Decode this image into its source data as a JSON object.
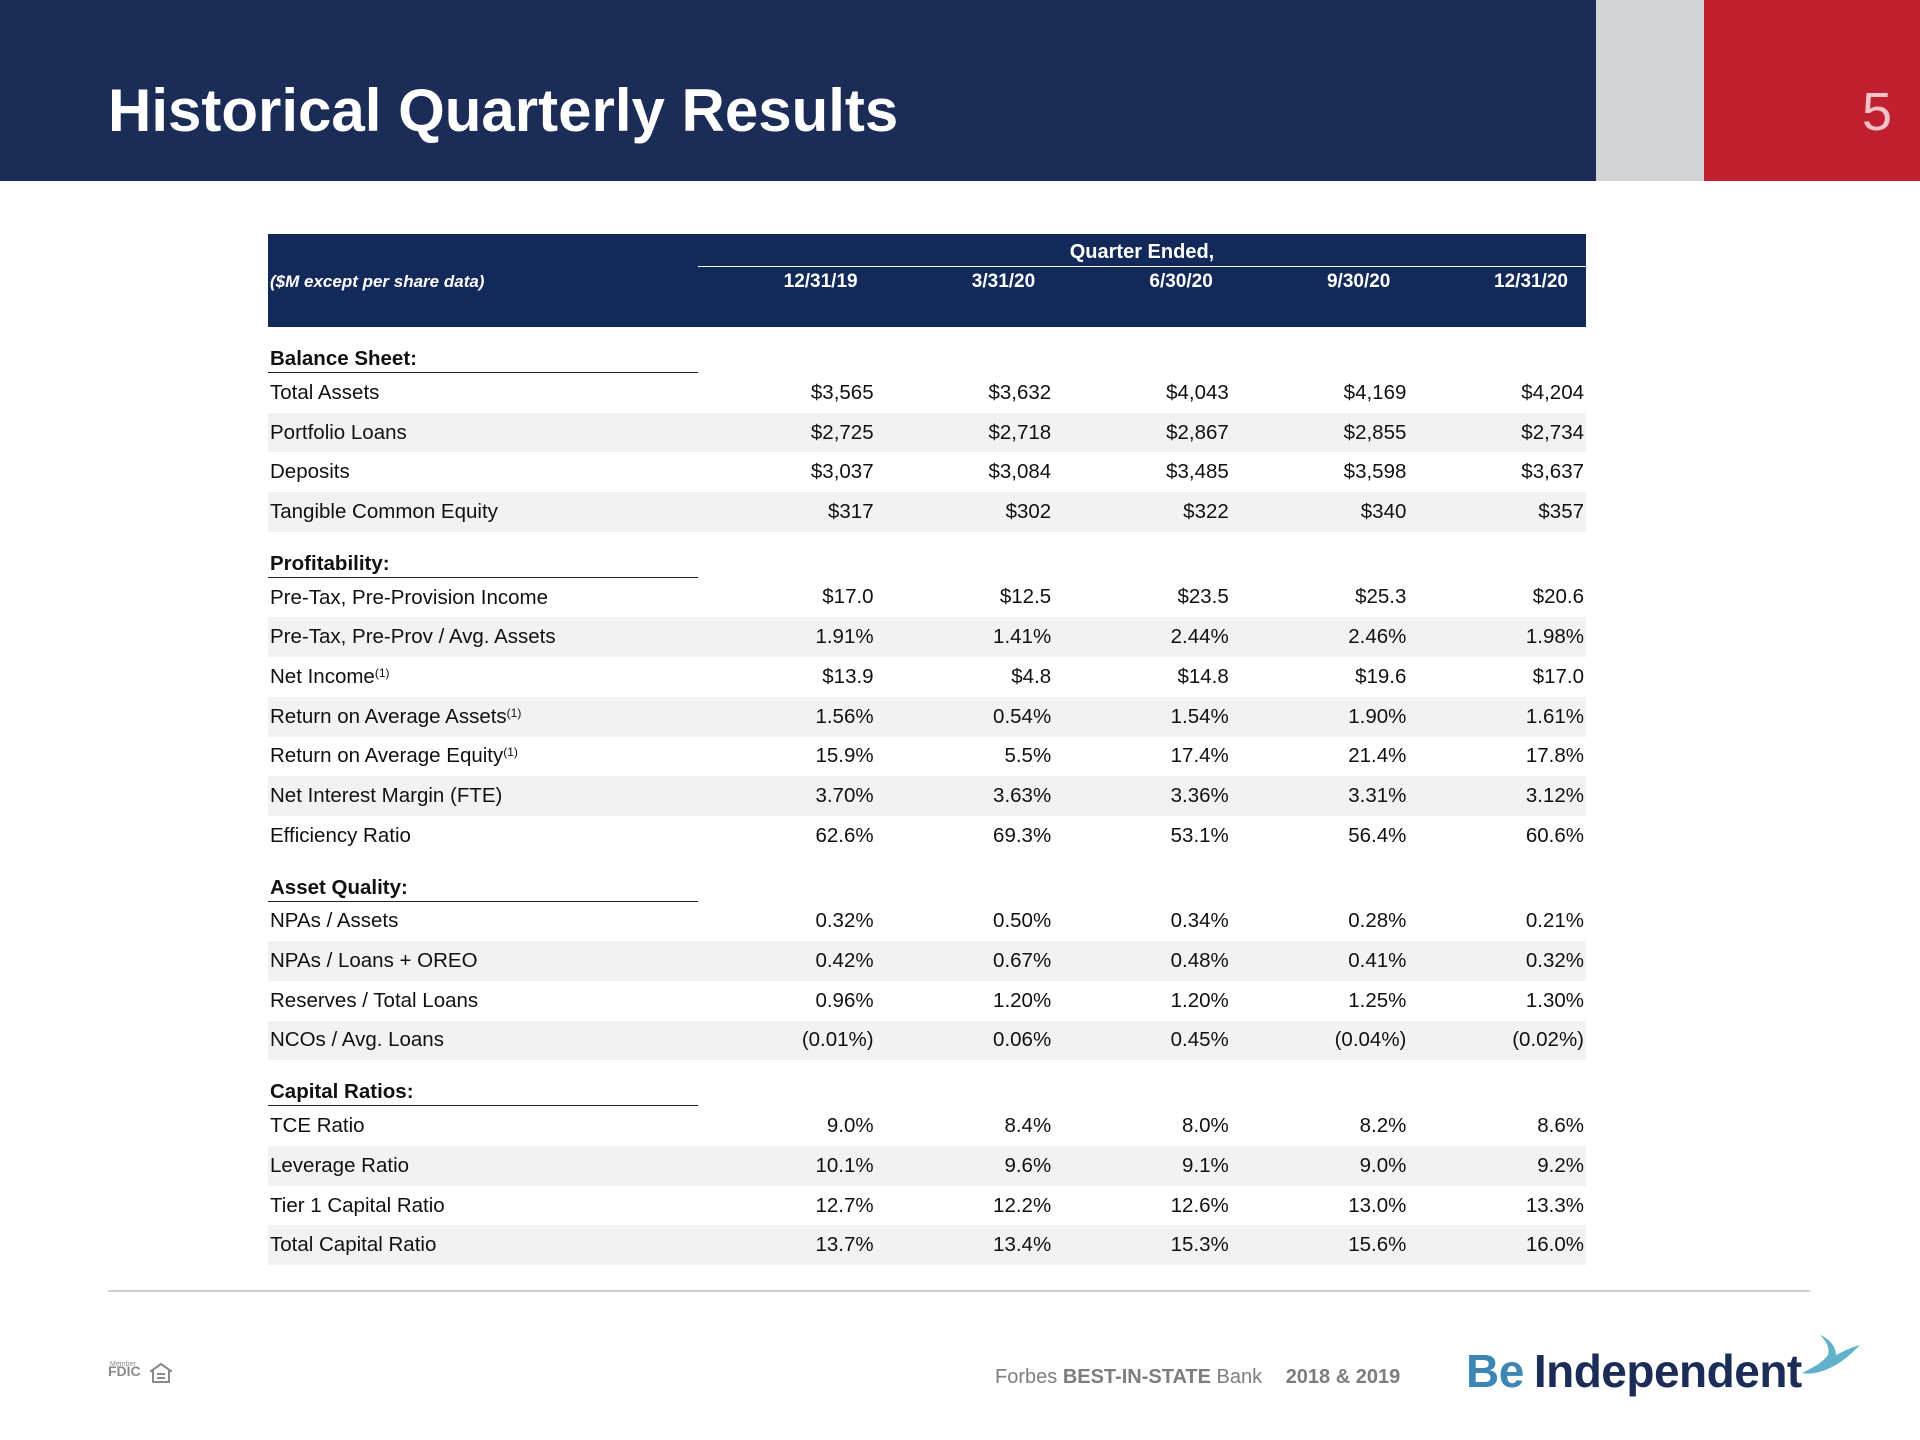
{
  "header": {
    "title": "Historical Quarterly Results",
    "page_number": "5",
    "colors": {
      "navy": "#1b2c57",
      "gray": "#d3d4d6",
      "red": "#c0202f"
    }
  },
  "table": {
    "group_header": "Quarter Ended,",
    "units_label": "($M except per share data)",
    "columns": [
      "12/31/19",
      "3/31/20",
      "6/30/20",
      "9/30/20",
      "12/31/20"
    ],
    "sections": [
      {
        "title": "Balance Sheet:",
        "rows": [
          {
            "label": "Total Assets",
            "values": [
              "$3,565",
              "$3,632",
              "$4,043",
              "$4,169",
              "$4,204"
            ]
          },
          {
            "label": "Portfolio Loans",
            "values": [
              "$2,725",
              "$2,718",
              "$2,867",
              "$2,855",
              "$2,734"
            ]
          },
          {
            "label": "Deposits",
            "values": [
              "$3,037",
              "$3,084",
              "$3,485",
              "$3,598",
              "$3,637"
            ]
          },
          {
            "label": "Tangible Common Equity",
            "values": [
              "$317",
              "$302",
              "$322",
              "$340",
              "$357"
            ]
          }
        ]
      },
      {
        "title": "Profitability:",
        "rows": [
          {
            "label": "Pre-Tax, Pre-Provision Income",
            "values": [
              "$17.0",
              "$12.5",
              "$23.5",
              "$25.3",
              "$20.6"
            ]
          },
          {
            "label": "Pre-Tax, Pre-Prov / Avg. Assets",
            "values": [
              "1.91%",
              "1.41%",
              "2.44%",
              "2.46%",
              "1.98%"
            ]
          },
          {
            "label": "Net Income",
            "note": "(1)",
            "values": [
              "$13.9",
              "$4.8",
              "$14.8",
              "$19.6",
              "$17.0"
            ]
          },
          {
            "label": "Return on Average Assets",
            "note": "(1)",
            "values": [
              "1.56%",
              "0.54%",
              "1.54%",
              "1.90%",
              "1.61%"
            ]
          },
          {
            "label": "Return on Average Equity",
            "note": "(1)",
            "values": [
              "15.9%",
              "5.5%",
              "17.4%",
              "21.4%",
              "17.8%"
            ]
          },
          {
            "label": "Net Interest Margin (FTE)",
            "values": [
              "3.70%",
              "3.63%",
              "3.36%",
              "3.31%",
              "3.12%"
            ]
          },
          {
            "label": "Efficiency Ratio",
            "values": [
              "62.6%",
              "69.3%",
              "53.1%",
              "56.4%",
              "60.6%"
            ]
          }
        ]
      },
      {
        "title": "Asset Quality:",
        "rows": [
          {
            "label": "NPAs / Assets",
            "values": [
              "0.32%",
              "0.50%",
              "0.34%",
              "0.28%",
              "0.21%"
            ]
          },
          {
            "label": "NPAs / Loans + OREO",
            "values": [
              "0.42%",
              "0.67%",
              "0.48%",
              "0.41%",
              "0.32%"
            ]
          },
          {
            "label": "Reserves / Total Loans",
            "values": [
              "0.96%",
              "1.20%",
              "1.20%",
              "1.25%",
              "1.30%"
            ]
          },
          {
            "label": "NCOs / Avg. Loans",
            "values": [
              "(0.01%)",
              "0.06%",
              "0.45%",
              "(0.04%)",
              "(0.02%)"
            ]
          }
        ]
      },
      {
        "title": "Capital Ratios:",
        "rows": [
          {
            "label": "TCE Ratio",
            "values": [
              "9.0%",
              "8.4%",
              "8.0%",
              "8.2%",
              "8.6%"
            ]
          },
          {
            "label": "Leverage Ratio",
            "values": [
              "10.1%",
              "9.6%",
              "9.1%",
              "9.0%",
              "9.2%"
            ]
          },
          {
            "label": "Tier 1 Capital Ratio",
            "values": [
              "12.7%",
              "12.2%",
              "12.6%",
              "13.0%",
              "13.3%"
            ]
          },
          {
            "label": "Total Capital Ratio",
            "values": [
              "13.7%",
              "13.4%",
              "15.3%",
              "15.6%",
              "16.0%"
            ]
          }
        ]
      }
    ]
  },
  "footer": {
    "fdic_member": "Member",
    "fdic_label": "FDIC",
    "forbes_prefix": "Forbes",
    "forbes_award": "BEST-IN-STATE",
    "forbes_suffix": "Bank",
    "years": "2018 & 2019",
    "brand_be": "Be",
    "brand_independent": "Independent",
    "icons": [
      "equal-housing-lender-icon",
      "bird-icon"
    ],
    "brand_colors": {
      "be": "#3b86b5",
      "independent": "#1b2c57"
    }
  }
}
